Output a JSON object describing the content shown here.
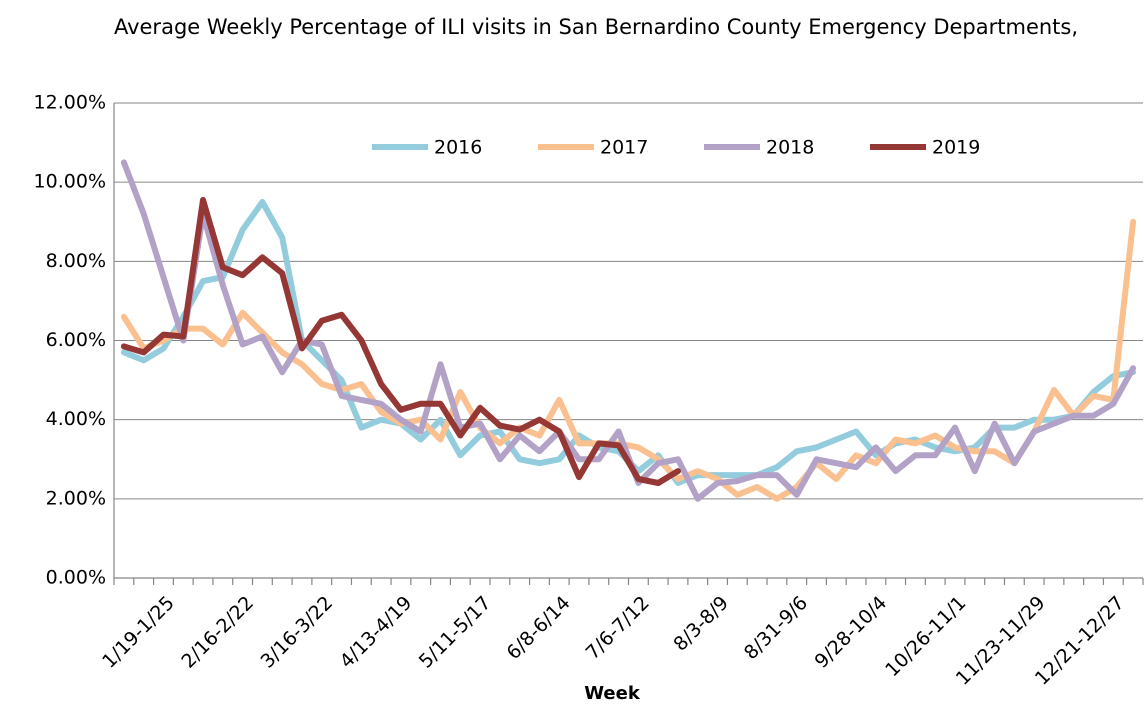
{
  "chart_data": {
    "type": "line",
    "title": "Average Weekly Percentage of ILI visits in San Bernardino County Emergency Departments,",
    "x_label": "Week",
    "categories": [
      null,
      null,
      "1/19-1/25",
      null,
      null,
      null,
      "2/16-2/22",
      null,
      null,
      null,
      "3/16-3/22",
      null,
      null,
      null,
      "4/13-4/19",
      null,
      null,
      null,
      "5/11-5/17",
      null,
      null,
      null,
      "6/8-6/14",
      null,
      null,
      null,
      "7/6-7/12",
      null,
      null,
      null,
      "8/3-8/9",
      null,
      null,
      null,
      "8/31-9/6",
      null,
      null,
      null,
      "9/28-10/4",
      null,
      null,
      null,
      "10/26-11/1",
      null,
      null,
      null,
      "11/23-11/29",
      null,
      null,
      null,
      "12/21-12/27",
      null
    ],
    "series": [
      {
        "name": "2016",
        "color": "#93cddd",
        "values": [
          5.7,
          5.5,
          5.8,
          6.6,
          7.5,
          7.6,
          8.8,
          9.5,
          8.6,
          6.0,
          5.5,
          5.0,
          3.8,
          4.0,
          3.9,
          3.5,
          4.0,
          3.1,
          3.6,
          3.7,
          3.0,
          2.9,
          3.0,
          3.6,
          3.3,
          3.2,
          2.7,
          3.1,
          2.4,
          2.6,
          2.6,
          2.6,
          2.6,
          2.8,
          3.2,
          3.3,
          3.5,
          3.7,
          3.1,
          3.4,
          3.5,
          3.3,
          3.2,
          3.3,
          3.8,
          3.8,
          4.0,
          4.0,
          4.1,
          4.7,
          5.1,
          5.2
        ]
      },
      {
        "name": "2017",
        "color": "#fac090",
        "values": [
          6.6,
          5.8,
          6.0,
          6.3,
          6.3,
          5.9,
          6.7,
          6.2,
          5.7,
          5.4,
          4.9,
          4.75,
          4.9,
          4.2,
          3.9,
          4.0,
          3.5,
          4.7,
          3.8,
          3.4,
          3.8,
          3.6,
          4.5,
          3.4,
          3.4,
          3.4,
          3.3,
          3.0,
          2.5,
          2.7,
          2.5,
          2.1,
          2.3,
          2.0,
          2.3,
          2.9,
          2.5,
          3.1,
          2.9,
          3.5,
          3.4,
          3.6,
          3.3,
          3.2,
          3.2,
          2.9,
          3.7,
          4.75,
          4.1,
          4.6,
          4.5,
          9.0
        ]
      },
      {
        "name": "2018",
        "color": "#b3a2c7",
        "values": [
          10.5,
          9.2,
          7.6,
          6.0,
          9.2,
          7.4,
          5.9,
          6.1,
          5.2,
          6.0,
          5.9,
          4.6,
          4.5,
          4.4,
          4.0,
          3.7,
          5.4,
          3.8,
          3.9,
          3.0,
          3.6,
          3.2,
          3.7,
          3.0,
          3.0,
          3.7,
          2.4,
          2.9,
          3.0,
          2.0,
          2.4,
          2.45,
          2.6,
          2.6,
          2.1,
          3.0,
          2.9,
          2.8,
          3.3,
          2.7,
          3.1,
          3.1,
          3.8,
          2.7,
          3.9,
          2.9,
          3.7,
          3.9,
          4.1,
          4.1,
          4.4,
          5.3
        ]
      },
      {
        "name": "2019",
        "color": "#953735",
        "values": [
          5.85,
          5.7,
          6.15,
          6.1,
          9.55,
          7.85,
          7.65,
          8.1,
          7.7,
          5.8,
          6.5,
          6.65,
          6.0,
          4.9,
          4.25,
          4.4,
          4.4,
          3.6,
          4.3,
          3.85,
          3.75,
          4.0,
          3.7,
          2.55,
          3.4,
          3.35,
          2.5,
          2.4,
          2.7,
          null,
          null,
          null,
          null,
          null,
          null,
          null,
          null,
          null,
          null,
          null,
          null,
          null,
          null,
          null,
          null,
          null,
          null,
          null,
          null,
          null,
          null,
          null
        ]
      }
    ],
    "ylim": [
      0,
      12
    ],
    "yticks": [
      {
        "value": 0,
        "label": "0.00%"
      },
      {
        "value": 2,
        "label": "2.00%"
      },
      {
        "value": 4,
        "label": "4.00%"
      },
      {
        "value": 6,
        "label": "6.00%"
      },
      {
        "value": 8,
        "label": "8.00%"
      },
      {
        "value": 10,
        "label": "10.00%"
      },
      {
        "value": 12,
        "label": "12.00%"
      }
    ],
    "grid": true
  }
}
